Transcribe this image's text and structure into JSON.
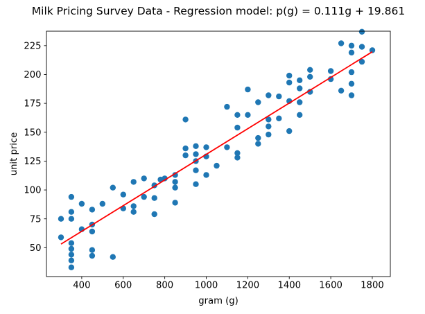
{
  "chart_data": {
    "type": "scatter",
    "title": "Milk Pricing Survey Data - Regression model: p(g) = 0.111g + 19.861",
    "xlabel": "gram (g)",
    "ylabel": "unit price",
    "x_ticks": [
      400,
      600,
      800,
      1000,
      1200,
      1400,
      1600,
      1800
    ],
    "y_ticks": [
      50,
      75,
      100,
      125,
      150,
      175,
      200,
      225
    ],
    "xlim": [
      230,
      1887
    ],
    "ylim": [
      25,
      237.5
    ],
    "grid": false,
    "legend_position": "none",
    "background_color": "#ffffff",
    "series": [
      {
        "name": "survey-points",
        "type": "scatter",
        "color": "#1f77b4",
        "marker_radius": 4.2,
        "points": [
          [
            300,
            75
          ],
          [
            300,
            59
          ],
          [
            350,
            94
          ],
          [
            350,
            81
          ],
          [
            350,
            75
          ],
          [
            350,
            54
          ],
          [
            350,
            49
          ],
          [
            350,
            44
          ],
          [
            350,
            39
          ],
          [
            350,
            33
          ],
          [
            400,
            88
          ],
          [
            400,
            66
          ],
          [
            450,
            83
          ],
          [
            450,
            70
          ],
          [
            450,
            64
          ],
          [
            450,
            48
          ],
          [
            450,
            43
          ],
          [
            500,
            88
          ],
          [
            550,
            102
          ],
          [
            550,
            42
          ],
          [
            600,
            96
          ],
          [
            600,
            84
          ],
          [
            650,
            107
          ],
          [
            650,
            86
          ],
          [
            650,
            81
          ],
          [
            700,
            110
          ],
          [
            700,
            94
          ],
          [
            750,
            104
          ],
          [
            750,
            93
          ],
          [
            750,
            79
          ],
          [
            780,
            109
          ],
          [
            800,
            110
          ],
          [
            850,
            113
          ],
          [
            850,
            107
          ],
          [
            850,
            102
          ],
          [
            850,
            89
          ],
          [
            900,
            161
          ],
          [
            900,
            136
          ],
          [
            900,
            130
          ],
          [
            950,
            138
          ],
          [
            950,
            131
          ],
          [
            950,
            125
          ],
          [
            950,
            117
          ],
          [
            950,
            105
          ],
          [
            1000,
            137
          ],
          [
            1000,
            129
          ],
          [
            1000,
            113
          ],
          [
            1050,
            121
          ],
          [
            1100,
            172
          ],
          [
            1100,
            137
          ],
          [
            1150,
            165
          ],
          [
            1150,
            154
          ],
          [
            1150,
            132
          ],
          [
            1150,
            128
          ],
          [
            1200,
            187
          ],
          [
            1200,
            165
          ],
          [
            1250,
            176
          ],
          [
            1250,
            145
          ],
          [
            1250,
            140
          ],
          [
            1300,
            182
          ],
          [
            1300,
            161
          ],
          [
            1300,
            155
          ],
          [
            1300,
            148
          ],
          [
            1350,
            181
          ],
          [
            1350,
            162
          ],
          [
            1400,
            199
          ],
          [
            1400,
            193
          ],
          [
            1400,
            177
          ],
          [
            1400,
            151
          ],
          [
            1450,
            195
          ],
          [
            1450,
            188
          ],
          [
            1450,
            176
          ],
          [
            1450,
            165
          ],
          [
            1500,
            204
          ],
          [
            1500,
            198
          ],
          [
            1500,
            185
          ],
          [
            1600,
            203
          ],
          [
            1600,
            196
          ],
          [
            1650,
            227
          ],
          [
            1650,
            186
          ],
          [
            1700,
            225
          ],
          [
            1700,
            219
          ],
          [
            1700,
            202
          ],
          [
            1700,
            192
          ],
          [
            1700,
            182
          ],
          [
            1750,
            237
          ],
          [
            1750,
            224
          ],
          [
            1750,
            211
          ],
          [
            1800,
            221
          ]
        ]
      },
      {
        "name": "regression-line",
        "type": "line",
        "color": "#ff0000",
        "line_width": 1.8,
        "equation": "p(g) = 0.111g + 19.861",
        "slope": 0.111,
        "intercept": 19.861,
        "x_range": [
          300,
          1800
        ]
      }
    ]
  }
}
